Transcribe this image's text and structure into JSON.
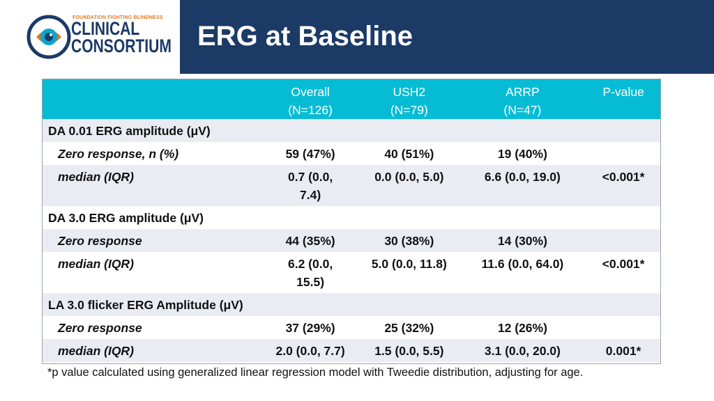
{
  "header": {
    "logo_tagline": "FOUNDATION FIGHTING BLINDNESS",
    "logo_line1": "CLINICAL",
    "logo_line2": "CONSORTIUM",
    "title": "ERG at Baseline",
    "colors": {
      "navy": "#1b3a66",
      "accent_orange": "#e0781f",
      "table_header": "#06bcd5"
    }
  },
  "table": {
    "columns": [
      {
        "line1": "",
        "line2": ""
      },
      {
        "line1": "Overall",
        "line2": "(N=126)"
      },
      {
        "line1": "USH2",
        "line2": "(N=79)"
      },
      {
        "line1": "ARRP",
        "line2": "(N=47)"
      },
      {
        "line1": "P-value",
        "line2": ""
      }
    ],
    "rows": [
      {
        "type": "section",
        "label": "DA 0.01 ERG amplitude (μV)"
      },
      {
        "type": "row",
        "label": "Zero response, n (%)",
        "overall": "59 (47%)",
        "ush2": "40 (51%)",
        "arrp": "19 (40%)",
        "p": ""
      },
      {
        "type": "row",
        "label": "median (IQR)",
        "overall": "0.7 (0.0, 7.4)",
        "ush2": "0.0 (0.0, 5.0)",
        "arrp": "6.6 (0.0, 19.0)",
        "p": "<0.001*"
      },
      {
        "type": "section",
        "label": "DA 3.0 ERG amplitude (μV)"
      },
      {
        "type": "row",
        "label": "Zero response",
        "overall": "44 (35%)",
        "ush2": "30 (38%)",
        "arrp": "14 (30%)",
        "p": ""
      },
      {
        "type": "row",
        "label": "median (IQR)",
        "overall": "6.2 (0.0, 15.5)",
        "ush2": "5.0 (0.0, 11.8)",
        "arrp": "11.6 (0.0, 64.0)",
        "p": "<0.001*"
      },
      {
        "type": "section",
        "label": "LA 3.0 flicker ERG Amplitude (μV)"
      },
      {
        "type": "row",
        "label": "Zero response",
        "overall": "37 (29%)",
        "ush2": "25 (32%)",
        "arrp": "12 (26%)",
        "p": ""
      },
      {
        "type": "row",
        "label": "median (IQR)",
        "overall": "2.0 (0.0, 7.7)",
        "ush2": "1.5 (0.0, 5.5)",
        "arrp": "3.1 (0.0, 20.0)",
        "p": "0.001*"
      }
    ]
  },
  "footnote": "*p value calculated using generalized linear regression model with Tweedie distribution, adjusting for age."
}
